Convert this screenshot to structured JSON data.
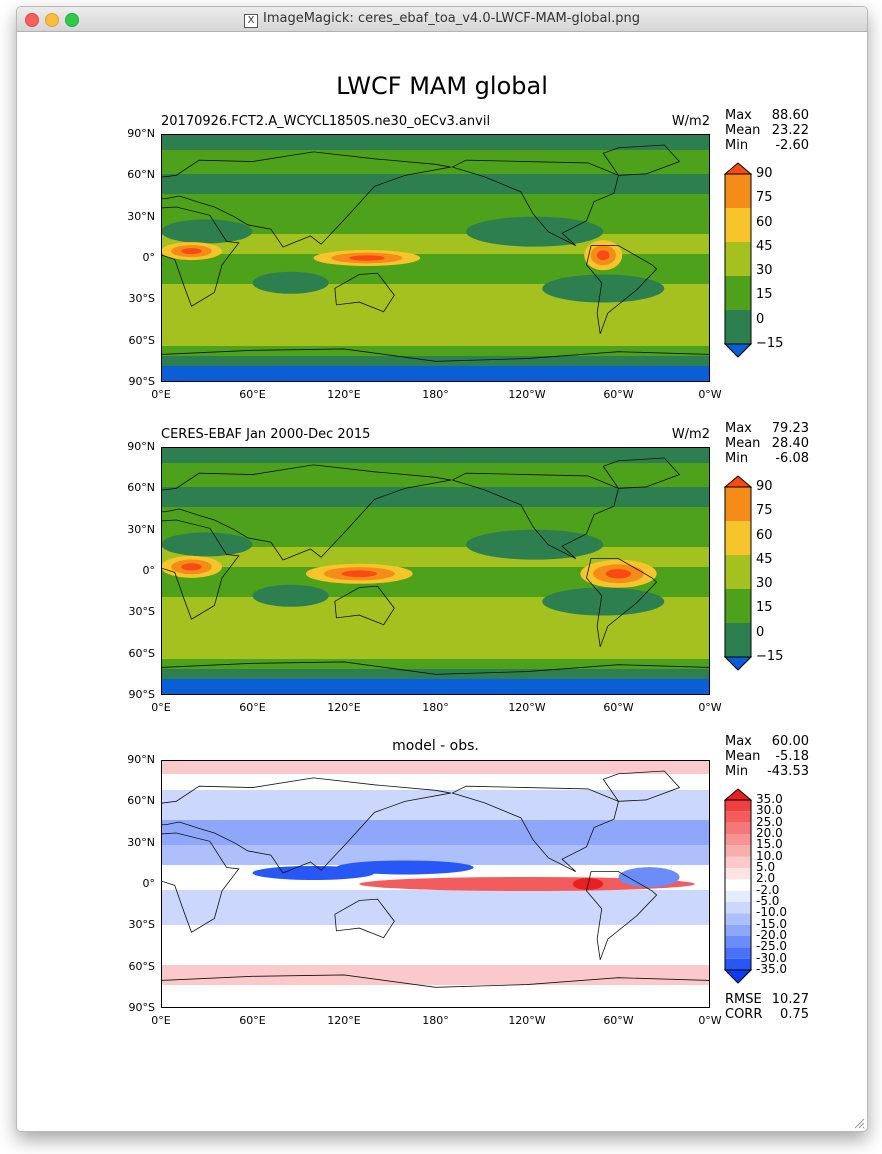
{
  "window": {
    "title": "ImageMagick: ceres_ebaf_toa_v4.0-LWCF-MAM-global.png",
    "app_icon": "x11-icon"
  },
  "figure": {
    "title": "LWCF MAM global"
  },
  "axes": {
    "lat_ticks": [
      "90°N",
      "60°N",
      "30°N",
      "0°",
      "30°S",
      "60°S",
      "90°S"
    ],
    "lon_ticks": [
      "0°E",
      "60°E",
      "120°E",
      "180°",
      "120°W",
      "60°W",
      "0°W"
    ]
  },
  "panels": [
    {
      "left_title": "20170926.FCT2.A_WCYCL1850S.ne30_oECv3.anvil",
      "right_title": "W/m2",
      "center_title": "",
      "stats": [
        {
          "label": "Max",
          "value": "88.60"
        },
        {
          "label": "Mean",
          "value": "23.22"
        },
        {
          "label": "Min",
          "value": "-2.60"
        }
      ],
      "colorbar": {
        "labels": [
          "90",
          "75",
          "60",
          "45",
          "30",
          "15",
          "0",
          "−15"
        ],
        "colors": [
          "#0a5fd6",
          "#2e7f4f",
          "#4ea11b",
          "#a4c11f",
          "#f6c52b",
          "#f58b18",
          "#f84a13"
        ]
      }
    },
    {
      "left_title": "CERES-EBAF Jan 2000-Dec 2015",
      "right_title": "W/m2",
      "center_title": "",
      "stats": [
        {
          "label": "Max",
          "value": "79.23"
        },
        {
          "label": "Mean",
          "value": "28.40"
        },
        {
          "label": "Min",
          "value": "-6.08"
        }
      ],
      "colorbar": {
        "labels": [
          "90",
          "75",
          "60",
          "45",
          "30",
          "15",
          "0",
          "−15"
        ],
        "colors": [
          "#0a5fd6",
          "#2e7f4f",
          "#4ea11b",
          "#a4c11f",
          "#f6c52b",
          "#f58b18",
          "#f84a13"
        ]
      }
    },
    {
      "left_title": "",
      "right_title": "",
      "center_title": "model - obs.",
      "stats": [
        {
          "label": "Max",
          "value": "60.00"
        },
        {
          "label": "Mean",
          "value": "-5.18"
        },
        {
          "label": "Min",
          "value": "-43.53"
        }
      ],
      "extra_stats": [
        {
          "label": "RMSE",
          "value": "10.27"
        },
        {
          "label": "CORR",
          "value": "0.75"
        }
      ],
      "colorbar": {
        "labels": [
          "35.0",
          "30.0",
          "25.0",
          "20.0",
          "15.0",
          "10.0",
          "5.0",
          "2.0",
          "-2.0",
          "-5.0",
          "-10.0",
          "-15.0",
          "-20.0",
          "-25.0",
          "-30.0",
          "-35.0"
        ],
        "colors": [
          "#0b3cf5",
          "#2857f7",
          "#4a72f8",
          "#6b8df9",
          "#8ea7fa",
          "#aec0fb",
          "#cbd7fc",
          "#e4ebfd",
          "#ffffff",
          "#fde4e4",
          "#fbc9c9",
          "#f9aeae",
          "#f79393",
          "#f57878",
          "#f35c5c",
          "#f03f3f",
          "#ea2020"
        ]
      }
    }
  ]
}
